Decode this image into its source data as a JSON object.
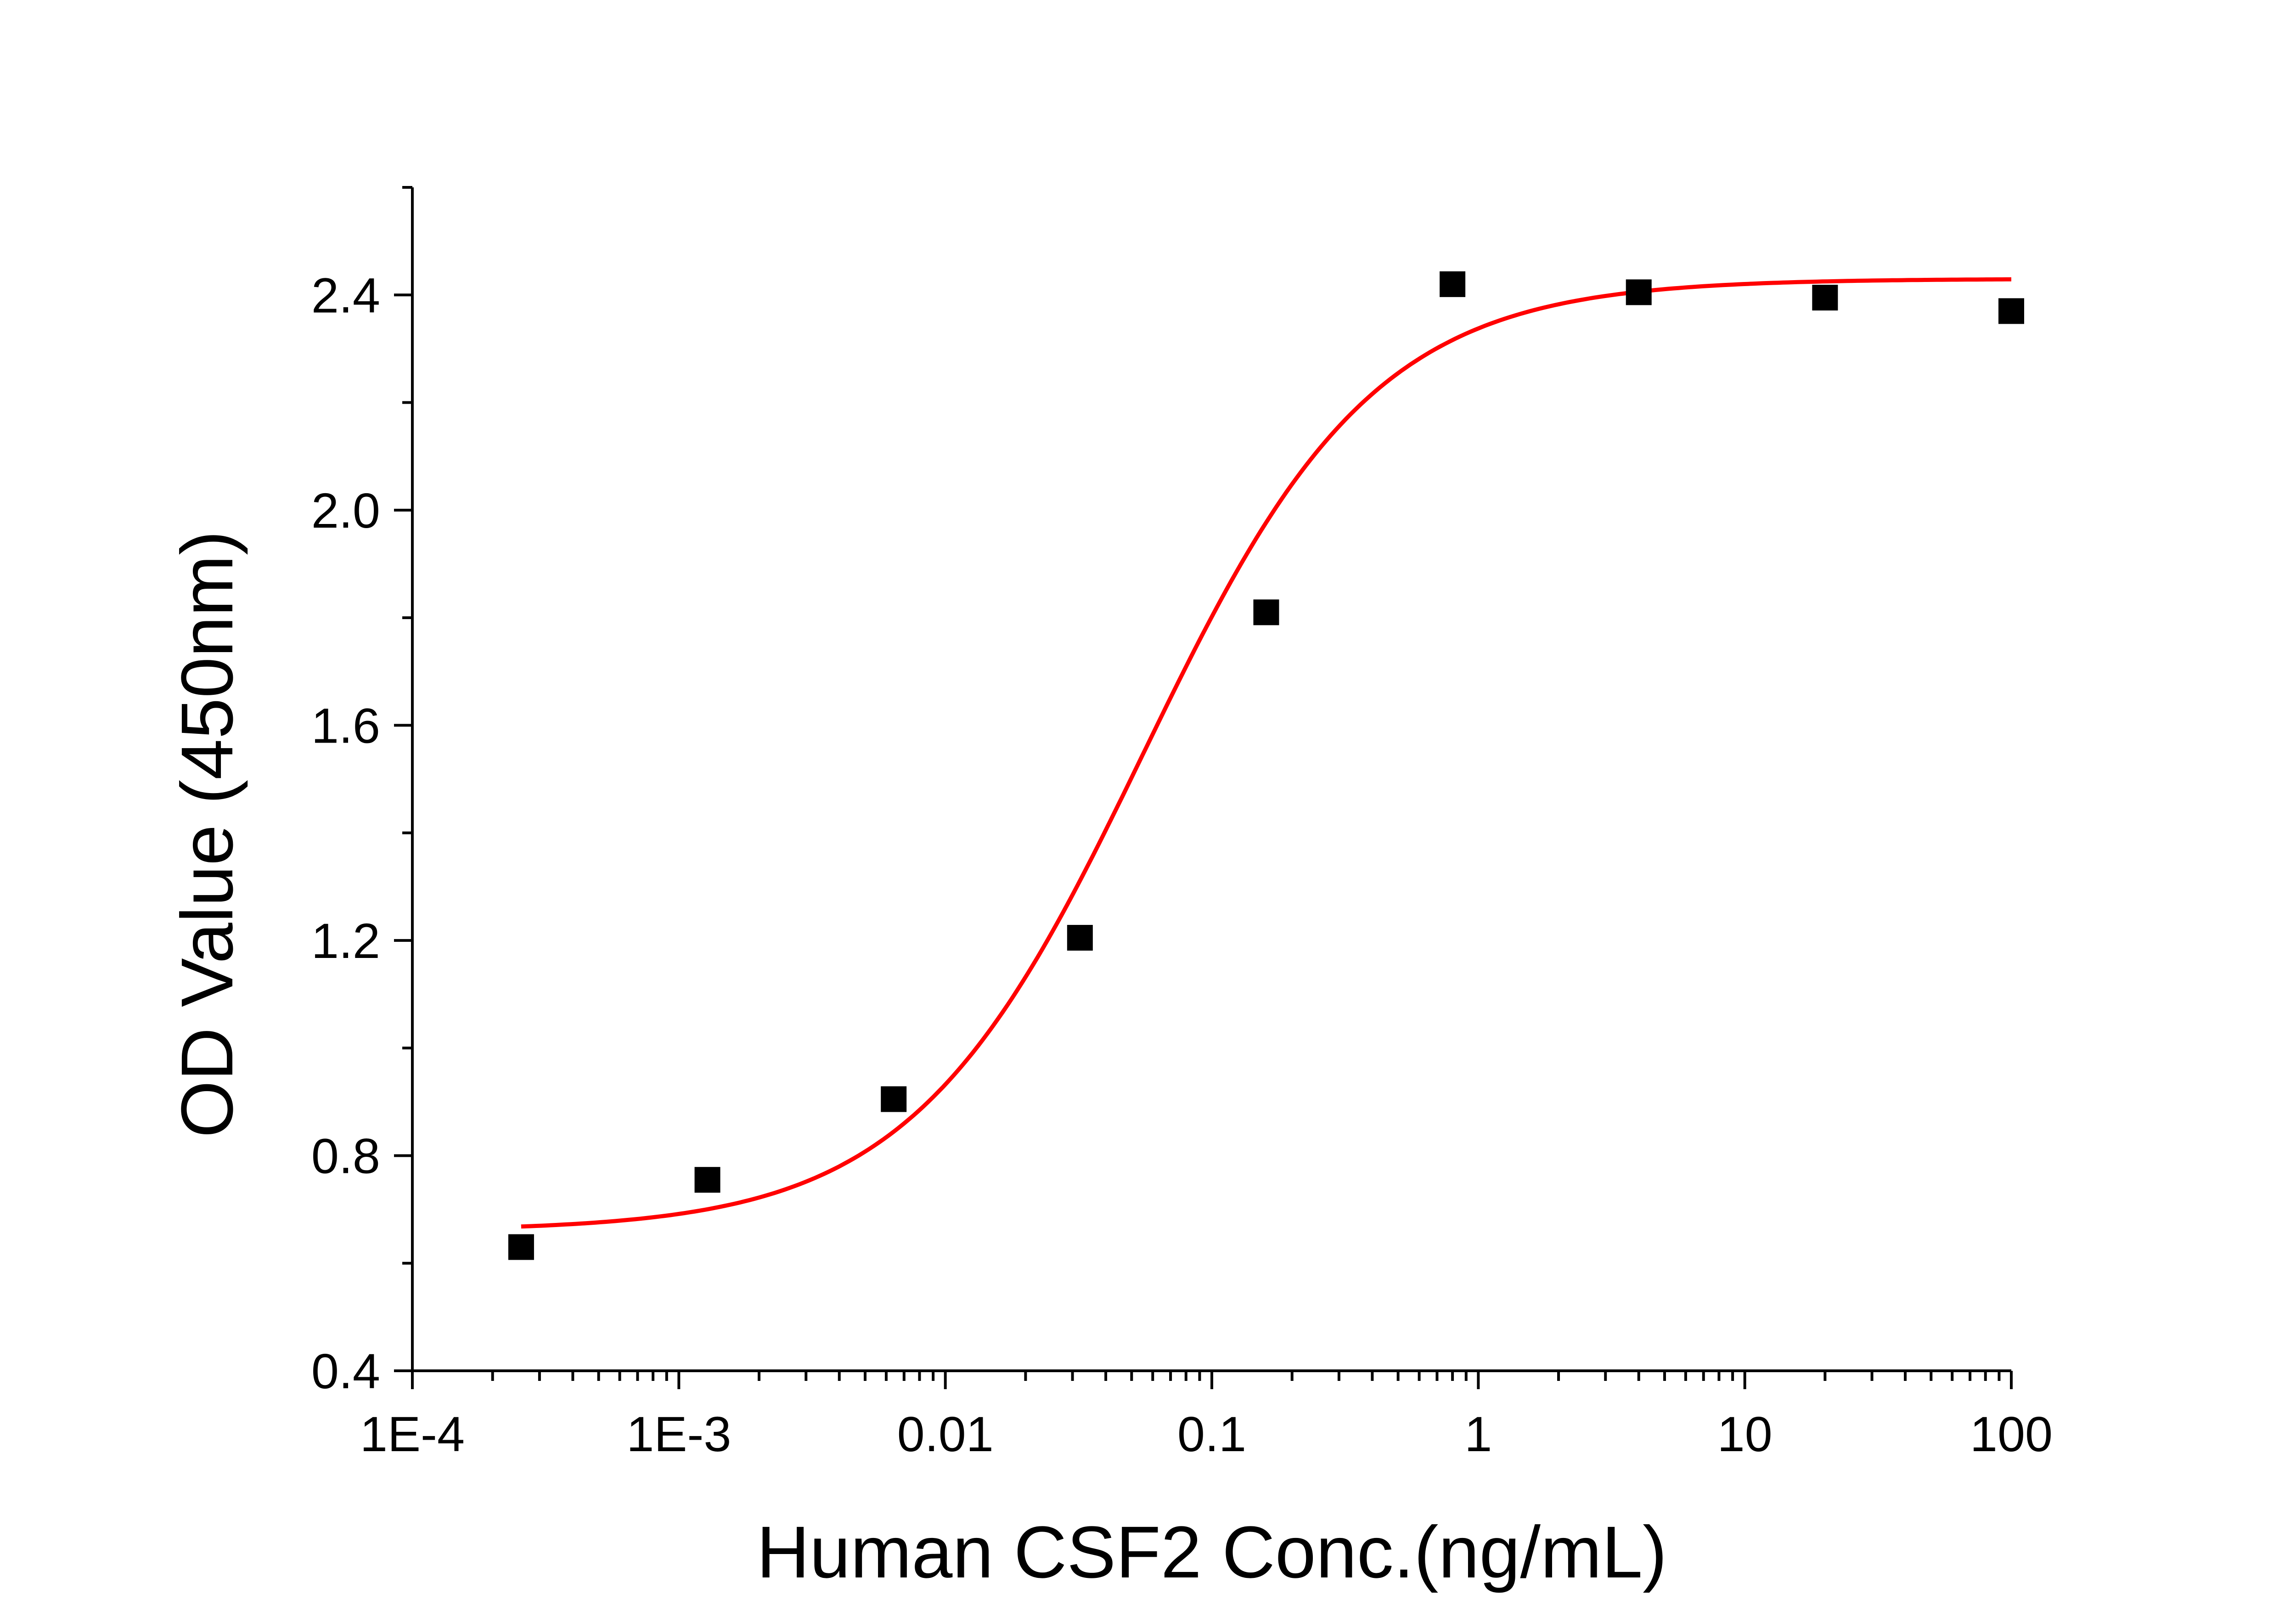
{
  "chart_data": {
    "type": "scatter",
    "xlabel": "Human CSF2 Conc.(ng/mL)",
    "ylabel": "OD Value (450nm)",
    "x_scale": "log",
    "xlim": [
      0.0001,
      100
    ],
    "ylim": [
      0.4,
      2.6
    ],
    "x_ticks": [
      0.0001,
      0.001,
      0.01,
      0.1,
      1,
      10,
      100
    ],
    "x_tick_labels": [
      "1E-4",
      "1E-3",
      "0.01",
      "0.1",
      "1",
      "10",
      "100"
    ],
    "y_ticks": [
      0.4,
      0.8,
      1.2,
      1.6,
      2.0,
      2.4
    ],
    "y_tick_labels": [
      "0.4",
      "0.8",
      "1.2",
      "1.6",
      "2.0",
      "2.4"
    ],
    "grid": false,
    "colors": {
      "points": "#000000",
      "fit": "#ff0000"
    },
    "series": [
      {
        "type": "scatter",
        "marker": "square",
        "x": [
          0.000256,
          0.00128,
          0.0064,
          0.032,
          0.16,
          0.8,
          4,
          20,
          100
        ],
        "y": [
          0.63,
          0.755,
          0.905,
          1.205,
          1.81,
          2.42,
          2.405,
          2.395,
          2.37
        ]
      },
      {
        "type": "line",
        "fit": "4PL",
        "x_range": [
          0.000256,
          100
        ],
        "params": {
          "bottom": 0.66,
          "top": 2.43,
          "ec50": 0.055,
          "hill": 1.0
        }
      }
    ]
  }
}
